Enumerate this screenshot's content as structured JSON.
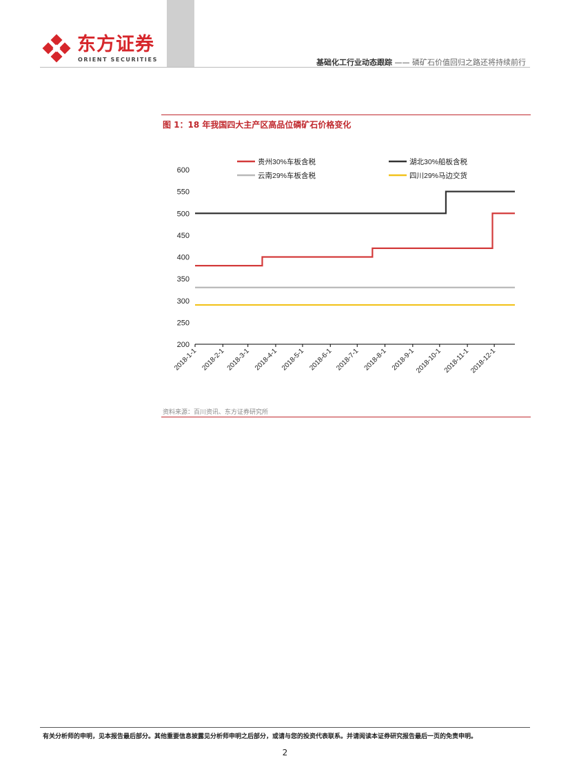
{
  "header": {
    "logo_cn": "东方证券",
    "logo_en": "ORIENT SECURITIES",
    "report_type": "基础化工行业动态跟踪",
    "separator": " —— ",
    "report_title": "磷矿石价值回归之路还将持续前行"
  },
  "figure": {
    "title": "图 1：18 年我国四大主产区高品位磷矿石价格变化",
    "source": "资料来源：百川资讯、东方证券研究所"
  },
  "chart_data": {
    "type": "line",
    "title": "",
    "xlabel": "",
    "ylabel": "",
    "ylim": [
      200,
      600
    ],
    "yticks": [
      "200",
      "250",
      "300",
      "350",
      "400",
      "450",
      "500",
      "550",
      "600"
    ],
    "xticks": [
      "2018-1-1",
      "2018-2-1",
      "2018-3-1",
      "2018-4-1",
      "2018-5-1",
      "2018-6-1",
      "2018-7-1",
      "2018-8-1",
      "2018-9-1",
      "2018-10-1",
      "2018-11-1",
      "2018-12-1"
    ],
    "xrange": [
      "2018-01-01",
      "2018-12-24"
    ],
    "grid": false,
    "legend": "top",
    "series": [
      {
        "name": "贵州30%车板含税",
        "color": "#d33a3a",
        "points": [
          [
            "2018-01-01",
            380
          ],
          [
            "2018-03-17",
            400
          ],
          [
            "2018-07-18",
            420
          ],
          [
            "2018-11-29",
            500
          ],
          [
            "2018-12-24",
            500
          ]
        ]
      },
      {
        "name": "湖北30%船板含税",
        "color": "#333333",
        "points": [
          [
            "2018-01-01",
            500
          ],
          [
            "2018-10-08",
            550
          ],
          [
            "2018-12-24",
            550
          ]
        ]
      },
      {
        "name": "云南29%车板含税",
        "color": "#b8b8b8",
        "points": [
          [
            "2018-01-01",
            330
          ],
          [
            "2018-12-24",
            330
          ]
        ]
      },
      {
        "name": "四川29%马边交货",
        "color": "#f2c21b",
        "points": [
          [
            "2018-01-01",
            290
          ],
          [
            "2018-12-24",
            290
          ]
        ]
      }
    ]
  },
  "footer": {
    "note": "有关分析师的申明，见本报告最后部分。其他重要信息披露见分析师申明之后部分，或请与您的投资代表联系。并请阅读本证券研究报告最后一页的免责申明。",
    "page": "2"
  }
}
